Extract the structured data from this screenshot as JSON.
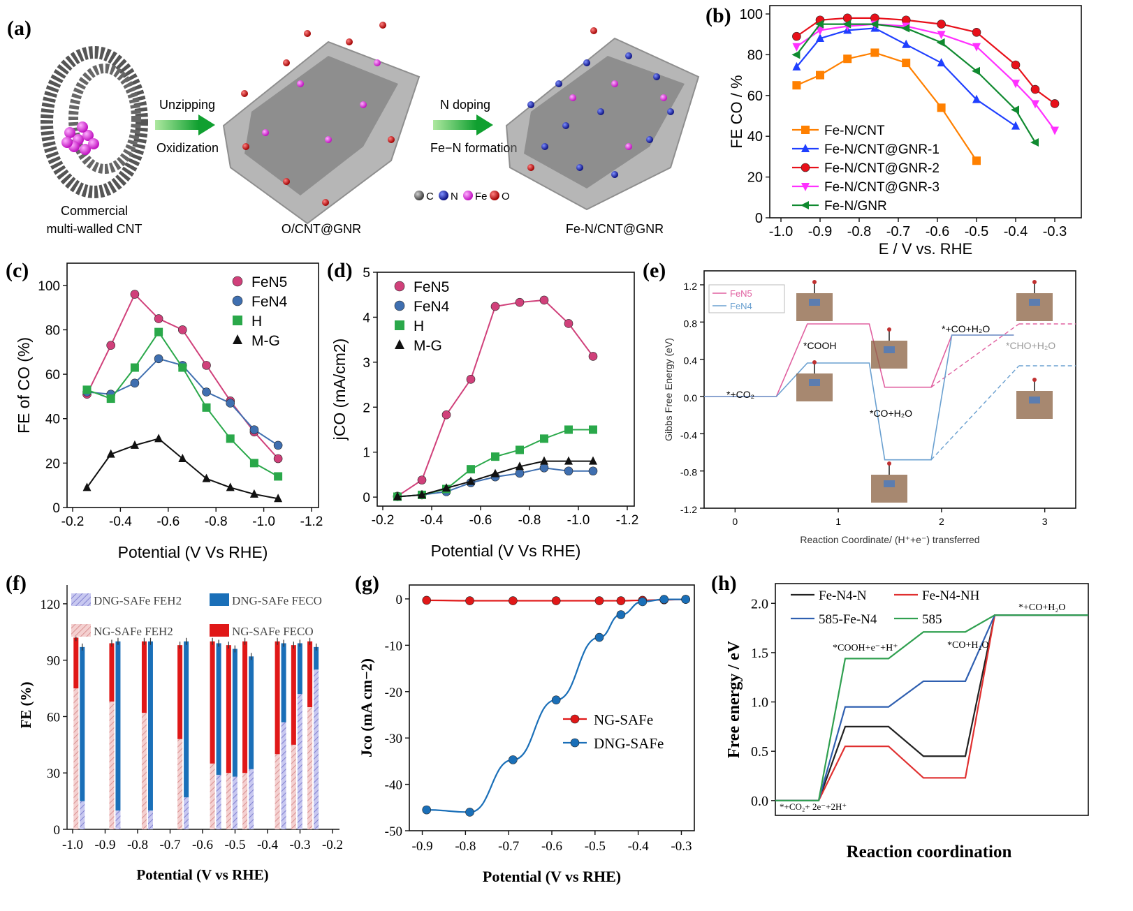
{
  "panel_labels": {
    "a": "(a)",
    "b": "(b)",
    "c": "(c)",
    "d": "(d)",
    "e": "(e)",
    "f": "(f)",
    "g": "(g)",
    "h": "(h)"
  },
  "colors": {
    "orange": "#ff8000",
    "blue": "#1f3fff",
    "red": "#e8101a",
    "magenta": "#ff30ff",
    "green": "#108a30",
    "pink": "#d0407a",
    "steel": "#3f6fb0",
    "lgreen": "#2aa84a",
    "black": "#111111",
    "e_pink": "#e060a0",
    "e_blue": "#6aa0d0",
    "f_blue": "#1a6fb8",
    "f_red": "#e01818",
    "h_black": "#222222",
    "h_red": "#e03030",
    "h_blue": "#2f5fb0",
    "h_green": "#30a050"
  },
  "panel_a": {
    "step1_top": "Unzipping",
    "step1_bottom": "Oxidization",
    "step2_top": "N doping",
    "step2_bottom": "Fe−N formation",
    "label1_line1": "Commercial",
    "label1_line2": "multi-walled CNT",
    "label2": "O/CNT@GNR",
    "label3": "Fe-N/CNT@GNR",
    "legend": [
      "C",
      "N",
      "Fe",
      "O"
    ]
  },
  "chart_data": [
    {
      "panel": "b",
      "type": "line",
      "xlabel": "E / V vs. RHE",
      "ylabel": "FE CO / %",
      "xlim": [
        -1.0,
        -0.25
      ],
      "ylim": [
        0,
        100
      ],
      "xticks": [
        -1.0,
        -0.9,
        -0.8,
        -0.7,
        -0.6,
        -0.5,
        -0.4,
        -0.3
      ],
      "xtick_labels": [
        "-1.0",
        "-0.9",
        "-0.8",
        "-0.7",
        "-0.6",
        "-0.5",
        "-0.4",
        "-0.3"
      ],
      "yticks": [
        0,
        20,
        40,
        60,
        80,
        100
      ],
      "ytick_labels": [
        "0",
        "20",
        "40",
        "60",
        "80",
        "100"
      ],
      "series": [
        {
          "name": "Fe-N/CNT",
          "color": "orange",
          "marker": "square",
          "x": [
            -0.96,
            -0.9,
            -0.83,
            -0.76,
            -0.68,
            -0.59,
            -0.5
          ],
          "y": [
            65,
            70,
            78,
            81,
            76,
            54,
            28
          ]
        },
        {
          "name": "Fe-N/CNT@GNR-1",
          "color": "blue",
          "marker": "tri_up",
          "x": [
            -0.96,
            -0.9,
            -0.83,
            -0.76,
            -0.68,
            -0.59,
            -0.5,
            -0.4
          ],
          "y": [
            74,
            88,
            92,
            93,
            85,
            76,
            58,
            45
          ]
        },
        {
          "name": "Fe-N/CNT@GNR-2",
          "color": "red",
          "marker": "circle",
          "x": [
            -0.96,
            -0.9,
            -0.83,
            -0.76,
            -0.68,
            -0.59,
            -0.5,
            -0.4,
            -0.35,
            -0.3
          ],
          "y": [
            89,
            97,
            98,
            98,
            97,
            95,
            91,
            75,
            63,
            56
          ]
        },
        {
          "name": "Fe-N/CNT@GNR-3",
          "color": "magenta",
          "marker": "tri_down",
          "x": [
            -0.96,
            -0.9,
            -0.83,
            -0.76,
            -0.68,
            -0.59,
            -0.5,
            -0.4,
            -0.35,
            -0.3
          ],
          "y": [
            84,
            92,
            94,
            95,
            94,
            90,
            84,
            66,
            56,
            43
          ]
        },
        {
          "name": "Fe-N/GNR",
          "color": "green",
          "marker": "tri_left",
          "x": [
            -0.96,
            -0.9,
            -0.83,
            -0.76,
            -0.68,
            -0.59,
            -0.5,
            -0.4,
            -0.35
          ],
          "y": [
            80,
            95,
            95,
            95,
            93,
            86,
            72,
            53,
            37
          ]
        }
      ]
    },
    {
      "panel": "c",
      "type": "line",
      "xlabel": "Potential (V Vs RHE)",
      "ylabel": "FE of CO (%)",
      "xlim": [
        -0.2,
        -1.2
      ],
      "ylim": [
        0,
        110
      ],
      "xticks": [
        -0.2,
        -0.4,
        -0.6,
        -0.8,
        -1.0,
        -1.2
      ],
      "xtick_labels": [
        "-0.2",
        "-0.4",
        "-0.6",
        "-0.8",
        "-1.0",
        "-1.2"
      ],
      "yticks": [
        0,
        20,
        40,
        60,
        80,
        100
      ],
      "ytick_labels": [
        "0",
        "20",
        "40",
        "60",
        "80",
        "100"
      ],
      "series": [
        {
          "name": "FeN5",
          "color": "pink",
          "marker": "circle",
          "x": [
            -0.26,
            -0.36,
            -0.46,
            -0.56,
            -0.66,
            -0.76,
            -0.86,
            -0.96,
            -1.06
          ],
          "y": [
            51,
            73,
            96,
            85,
            80,
            64,
            48,
            34,
            22
          ]
        },
        {
          "name": "FeN4",
          "color": "steel",
          "marker": "circle",
          "x": [
            -0.26,
            -0.36,
            -0.46,
            -0.56,
            -0.66,
            -0.76,
            -0.86,
            -0.96,
            -1.06
          ],
          "y": [
            52,
            51,
            56,
            67,
            64,
            52,
            47,
            35,
            28
          ]
        },
        {
          "name": "H",
          "color": "lgreen",
          "marker": "square",
          "x": [
            -0.26,
            -0.36,
            -0.46,
            -0.56,
            -0.66,
            -0.76,
            -0.86,
            -0.96,
            -1.06
          ],
          "y": [
            53,
            49,
            63,
            79,
            63,
            45,
            31,
            20,
            14
          ]
        },
        {
          "name": "M-G",
          "color": "black",
          "marker": "tri_up",
          "x": [
            -0.26,
            -0.36,
            -0.46,
            -0.56,
            -0.66,
            -0.76,
            -0.86,
            -0.96,
            -1.06
          ],
          "y": [
            9,
            24,
            28,
            31,
            22,
            13,
            9,
            6,
            4
          ]
        }
      ]
    },
    {
      "panel": "d",
      "type": "line",
      "xlabel": "Potential (V Vs RHE)",
      "ylabel": "jCO (mA/cm2)",
      "xlim": [
        -0.2,
        -1.2
      ],
      "ylim": [
        -0.2,
        5
      ],
      "xticks": [
        -0.2,
        -0.4,
        -0.6,
        -0.8,
        -1.0,
        -1.2
      ],
      "xtick_labels": [
        "-0.2",
        "-0.4",
        "-0.6",
        "-0.8",
        "-1.0",
        "-1.2"
      ],
      "yticks": [
        0,
        1,
        2,
        3,
        4,
        5
      ],
      "ytick_labels": [
        "0",
        "1",
        "2",
        "3",
        "4",
        "5"
      ],
      "series": [
        {
          "name": "FeN5",
          "color": "pink",
          "marker": "circle",
          "x": [
            -0.26,
            -0.36,
            -0.46,
            -0.56,
            -0.66,
            -0.76,
            -0.86,
            -0.96,
            -1.06
          ],
          "y": [
            0.02,
            0.38,
            1.83,
            2.62,
            4.24,
            4.33,
            4.38,
            3.86,
            3.13
          ]
        },
        {
          "name": "FeN4",
          "color": "steel",
          "marker": "circle",
          "x": [
            -0.26,
            -0.36,
            -0.46,
            -0.56,
            -0.66,
            -0.76,
            -0.86,
            -0.96,
            -1.06
          ],
          "y": [
            0.01,
            0.05,
            0.12,
            0.32,
            0.45,
            0.53,
            0.65,
            0.58,
            0.58
          ]
        },
        {
          "name": "H",
          "color": "lgreen",
          "marker": "square",
          "x": [
            -0.26,
            -0.36,
            -0.46,
            -0.56,
            -0.66,
            -0.76,
            -0.86,
            -0.96,
            -1.06
          ],
          "y": [
            0.01,
            0.05,
            0.18,
            0.62,
            0.9,
            1.05,
            1.3,
            1.5,
            1.5
          ]
        },
        {
          "name": "M-G",
          "color": "black",
          "marker": "tri_up",
          "x": [
            -0.26,
            -0.36,
            -0.46,
            -0.56,
            -0.66,
            -0.76,
            -0.86,
            -0.96,
            -1.06
          ],
          "y": [
            0.01,
            0.05,
            0.2,
            0.35,
            0.52,
            0.68,
            0.8,
            0.8,
            0.8
          ]
        }
      ]
    },
    {
      "panel": "e",
      "type": "line",
      "xlabel": "Reaction Coordinate/ (H⁺+e⁻) transferred",
      "ylabel": "Gibbs Free Energy (eV)",
      "xlim": [
        -0.3,
        3.3
      ],
      "ylim": [
        -1.2,
        1.35
      ],
      "xticks": [
        0,
        1,
        2,
        3
      ],
      "xtick_labels": [
        "0",
        "1",
        "2",
        "3"
      ],
      "yticks": [
        -1.2,
        -0.8,
        -0.4,
        0.0,
        0.4,
        0.8,
        1.2
      ],
      "ytick_labels": [
        "-1.2",
        "-0.8",
        "-0.4",
        "0.0",
        "0.4",
        "0.8",
        "1.2"
      ],
      "series": [
        {
          "name": "FeN5",
          "color": "e_pink",
          "levels": [
            [
              -0.3,
              0.4,
              0.0
            ],
            [
              0.7,
              1.3,
              0.78
            ],
            [
              1.45,
              1.9,
              0.1
            ],
            [
              2.1,
              2.7,
              0.66
            ]
          ],
          "branch": [
            2.75,
            3.3,
            0.78
          ]
        },
        {
          "name": "FeN4",
          "color": "e_blue",
          "levels": [
            [
              -0.3,
              0.4,
              0.0
            ],
            [
              0.7,
              1.3,
              0.36
            ],
            [
              1.45,
              1.9,
              -0.68
            ],
            [
              2.1,
              2.7,
              0.66
            ]
          ],
          "branch": [
            2.75,
            3.3,
            0.33
          ]
        }
      ],
      "annotations": [
        "*+CO₂",
        "*COOH",
        "*CO+H₂O",
        "*+CO+H₂O",
        "*CHO+H₂O"
      ]
    },
    {
      "panel": "f",
      "type": "bar",
      "xlabel": "Potential (V vs RHE)",
      "ylabel": "FE (%)",
      "xlim": [
        -1.0,
        -0.2
      ],
      "ylim": [
        0,
        130
      ],
      "xticks": [
        -1.0,
        -0.9,
        -0.8,
        -0.7,
        -0.6,
        -0.5,
        -0.4,
        -0.3,
        -0.2
      ],
      "xtick_labels": [
        "-1.0",
        "-0.9",
        "-0.8",
        "-0.7",
        "-0.6",
        "-0.5",
        "-0.4",
        "-0.3",
        "-0.2"
      ],
      "yticks": [
        0,
        30,
        60,
        90,
        120
      ],
      "ytick_labels": [
        "0",
        "30",
        "60",
        "90",
        "120"
      ],
      "legend": [
        "DNG-SAFe FEH2",
        "DNG-SAFe FECO",
        "NG-SAFe FEH2",
        "NG-SAFe FECO"
      ],
      "x": [
        -0.98,
        -0.87,
        -0.77,
        -0.66,
        -0.56,
        -0.51,
        -0.46,
        -0.36,
        -0.31,
        -0.26
      ],
      "ng_h2": [
        75,
        68,
        62,
        48,
        35,
        30,
        30,
        40,
        45,
        65
      ],
      "ng_co": [
        27,
        31,
        38,
        50,
        65,
        68,
        70,
        60,
        53,
        35
      ],
      "dng_h2": [
        15,
        10,
        10,
        17,
        29,
        28,
        32,
        57,
        72,
        85
      ],
      "dng_co": [
        82,
        90,
        90,
        83,
        70,
        68,
        60,
        42,
        27,
        12
      ]
    },
    {
      "panel": "g",
      "type": "line",
      "xlabel": "Potential (V vs RHE)",
      "ylabel": "Jco (mA cm−2)",
      "xlim": [
        -0.93,
        -0.27
      ],
      "ylim": [
        -50,
        3
      ],
      "xticks": [
        -0.9,
        -0.8,
        -0.7,
        -0.6,
        -0.5,
        -0.4,
        -0.3
      ],
      "xtick_labels": [
        "-0.9",
        "-0.8",
        "-0.7",
        "-0.6",
        "-0.5",
        "-0.4",
        "-0.3"
      ],
      "yticks": [
        0,
        -10,
        -20,
        -30,
        -40,
        -50
      ],
      "ytick_labels": [
        "0",
        "-10",
        "-20",
        "-30",
        "-40",
        "-50"
      ],
      "series": [
        {
          "name": "NG-SAFe",
          "color": "f_red",
          "marker": "circle",
          "x": [
            -0.89,
            -0.79,
            -0.69,
            -0.59,
            -0.49,
            -0.44,
            -0.39,
            -0.34,
            -0.29
          ],
          "y": [
            -0.3,
            -0.4,
            -0.4,
            -0.4,
            -0.4,
            -0.4,
            -0.3,
            -0.2,
            -0.1
          ]
        },
        {
          "name": "DNG-SAFe",
          "color": "f_blue",
          "marker": "circle",
          "x": [
            -0.89,
            -0.79,
            -0.69,
            -0.59,
            -0.49,
            -0.44,
            -0.39,
            -0.34,
            -0.29
          ],
          "y": [
            -45.5,
            -46,
            -34.7,
            -21.8,
            -8.3,
            -3.4,
            -0.6,
            -0.1,
            -0.1
          ]
        }
      ]
    },
    {
      "panel": "h",
      "type": "line",
      "xlabel": "Reaction coordination",
      "ylabel": "Free energy / eV",
      "xlim": [
        0,
        6.5
      ],
      "ylim": [
        -0.15,
        2.2
      ],
      "yticks": [
        0.0,
        0.5,
        1.0,
        1.5,
        2.0
      ],
      "ytick_labels": [
        "0.0",
        "0.5",
        "1.0",
        "1.5",
        "2.0"
      ],
      "series": [
        {
          "name": "Fe-N4-N",
          "color": "h_black",
          "y": [
            0,
            0,
            0.75,
            0.75,
            0.45,
            0.45,
            1.88,
            1.88
          ]
        },
        {
          "name": "Fe-N4-NH",
          "color": "h_red",
          "y": [
            0,
            0,
            0.55,
            0.55,
            0.23,
            0.23,
            1.88,
            1.88
          ]
        },
        {
          "name": "585-Fe-N4",
          "color": "h_blue",
          "y": [
            0,
            0,
            0.95,
            0.95,
            1.21,
            1.21,
            1.88,
            1.88
          ]
        },
        {
          "name": "585",
          "color": "h_green",
          "y": [
            0,
            0,
            1.44,
            1.44,
            1.71,
            1.71,
            1.88,
            1.88
          ]
        }
      ],
      "annotations": [
        "*+CO₂+ 2e⁻+2H⁺",
        "*COOH+e⁻+H⁺",
        "*CO+H₂O",
        "*+CO+H₂O"
      ]
    }
  ]
}
